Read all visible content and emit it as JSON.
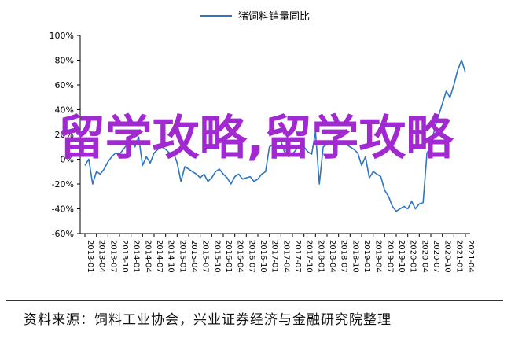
{
  "chart_data": {
    "type": "line",
    "title": "",
    "series": [
      {
        "name": "猪饲料销量同比",
        "color": "#2e75c2",
        "x": [
          "2013-01",
          "2013-02",
          "2013-03",
          "2013-04",
          "2013-05",
          "2013-06",
          "2013-07",
          "2013-08",
          "2013-09",
          "2013-10",
          "2013-11",
          "2013-12",
          "2014-01",
          "2014-02",
          "2014-03",
          "2014-04",
          "2014-05",
          "2014-06",
          "2014-07",
          "2014-08",
          "2014-09",
          "2014-10",
          "2014-11",
          "2014-12",
          "2015-01",
          "2015-02",
          "2015-03",
          "2015-04",
          "2015-05",
          "2015-06",
          "2015-07",
          "2015-08",
          "2015-09",
          "2015-10",
          "2015-11",
          "2015-12",
          "2016-01",
          "2016-02",
          "2016-03",
          "2016-04",
          "2016-05",
          "2016-06",
          "2016-07",
          "2016-08",
          "2016-09",
          "2016-10",
          "2016-11",
          "2016-12",
          "2017-01",
          "2017-02",
          "2017-03",
          "2017-04",
          "2017-05",
          "2017-06",
          "2017-07",
          "2017-08",
          "2017-09",
          "2017-10",
          "2017-11",
          "2017-12",
          "2018-01",
          "2018-02",
          "2018-03",
          "2018-04",
          "2018-05",
          "2018-06",
          "2018-07",
          "2018-08",
          "2018-09",
          "2018-10",
          "2018-11",
          "2018-12",
          "2019-01",
          "2019-02",
          "2019-03",
          "2019-04",
          "2019-05",
          "2019-06",
          "2019-07",
          "2019-08",
          "2019-09",
          "2019-10",
          "2019-11",
          "2019-12",
          "2020-01",
          "2020-02",
          "2020-03",
          "2020-04",
          "2020-05",
          "2020-06",
          "2020-07",
          "2020-08",
          "2020-09",
          "2020-10",
          "2020-11",
          "2020-12",
          "2021-01",
          "2021-02",
          "2021-03",
          "2021-04"
        ],
        "values": [
          -5,
          0,
          -20,
          -10,
          -12,
          -8,
          -2,
          2,
          5,
          4,
          8,
          12,
          15,
          10,
          18,
          -5,
          2,
          -3,
          5,
          8,
          10,
          8,
          5,
          6,
          -3,
          -18,
          -6,
          -8,
          -10,
          -12,
          -15,
          -12,
          -18,
          -15,
          -10,
          -8,
          -12,
          -15,
          -20,
          -14,
          -12,
          -16,
          -15,
          -14,
          -18,
          -16,
          -12,
          -10,
          10,
          12,
          14,
          15,
          5,
          2,
          4,
          8,
          12,
          10,
          6,
          4,
          22,
          -20,
          10,
          12,
          14,
          10,
          12,
          14,
          12,
          10,
          8,
          5,
          -5,
          2,
          -15,
          -10,
          -12,
          -14,
          -25,
          -30,
          -38,
          -42,
          -40,
          -38,
          -40,
          -34,
          -40,
          -36,
          -35,
          5,
          10,
          25,
          35,
          45,
          55,
          50,
          60,
          72,
          80,
          70
        ]
      }
    ],
    "yticks": [
      "-60%",
      "-40%",
      "-20%",
      "0%",
      "20%",
      "40%",
      "60%",
      "80%",
      "100%"
    ],
    "ylim": [
      -60,
      100
    ],
    "xticklabels": [
      "2013-01",
      "2013-04",
      "2013-07",
      "2013-10",
      "2014-01",
      "2014-04",
      "2014-07",
      "2014-10",
      "2015-01",
      "2015-04",
      "2015-07",
      "2015-10",
      "2016-01",
      "2016-04",
      "2016-07",
      "2016-10",
      "2017-01",
      "2017-04",
      "2017-07",
      "2017-10",
      "2018-01",
      "2018-04",
      "2018-07",
      "2018-10",
      "2019-01",
      "2019-04",
      "2019-07",
      "2019-10",
      "2020-01",
      "2020-04",
      "2020-07",
      "2020-10",
      "2021-01",
      "2021-04"
    ],
    "legend_position": "top-center",
    "grid": false
  },
  "source": "资料来源：饲料工业协会，兴业证券经济与金融研究院整理",
  "overlay_text": "留学攻略,留学攻略"
}
